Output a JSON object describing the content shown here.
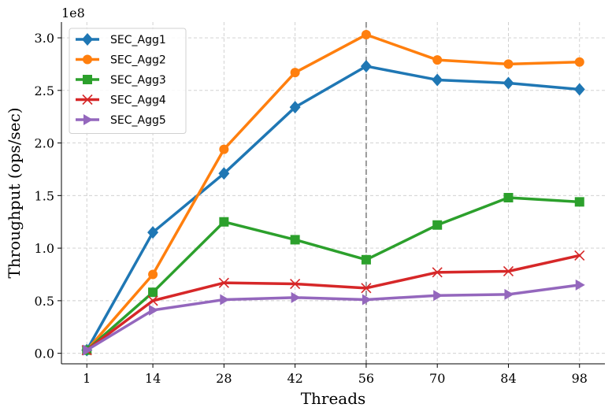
{
  "chart_data": {
    "type": "line",
    "title": "",
    "xlabel": "Threads",
    "ylabel": "Throughput (ops/sec)",
    "y_offset_label": "1e8",
    "categories": [
      "1",
      "14",
      "28",
      "42",
      "56",
      "70",
      "84",
      "98"
    ],
    "x": [
      1,
      14,
      28,
      42,
      56,
      70,
      84,
      98
    ],
    "xlim": [
      -4,
      103
    ],
    "ylim": [
      -0.1,
      3.15
    ],
    "y_scale": 100000000,
    "yticks": [
      0.0,
      0.5,
      1.0,
      1.5,
      2.0,
      2.5,
      3.0
    ],
    "ytick_labels": [
      "0.0",
      "0.5",
      "1.0",
      "1.5",
      "2.0",
      "2.5",
      "3.0"
    ],
    "grid": true,
    "legend_position": "top-left",
    "vline": {
      "x": 56,
      "color": "#999999",
      "style": "dashed"
    },
    "series": [
      {
        "name": "SEC_Agg1",
        "color": "#1f77b4",
        "marker": "diamond",
        "values": [
          0.03,
          1.15,
          1.71,
          2.34,
          2.73,
          2.6,
          2.57,
          2.51
        ]
      },
      {
        "name": "SEC_Agg2",
        "color": "#ff7f0e",
        "marker": "circle",
        "values": [
          0.03,
          0.75,
          1.94,
          2.67,
          3.03,
          2.79,
          2.75,
          2.77
        ]
      },
      {
        "name": "SEC_Agg3",
        "color": "#2ca02c",
        "marker": "square",
        "values": [
          0.03,
          0.58,
          1.25,
          1.08,
          0.89,
          1.22,
          1.48,
          1.44
        ]
      },
      {
        "name": "SEC_Agg4",
        "color": "#d62728",
        "marker": "x",
        "values": [
          0.03,
          0.5,
          0.67,
          0.66,
          0.62,
          0.77,
          0.78,
          0.93
        ]
      },
      {
        "name": "SEC_Agg5",
        "color": "#9467bd",
        "marker": "triangle-right",
        "values": [
          0.03,
          0.41,
          0.51,
          0.53,
          0.51,
          0.55,
          0.56,
          0.65
        ]
      }
    ]
  }
}
